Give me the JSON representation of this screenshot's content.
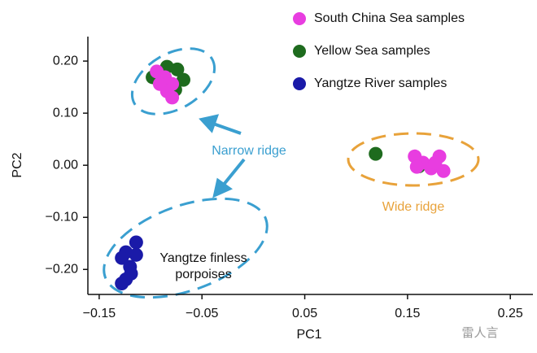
{
  "chart_data": {
    "type": "scatter",
    "xlabel": "PC1",
    "ylabel": "PC2",
    "xlim": [
      -0.161,
      0.272
    ],
    "ylim": [
      -0.248,
      0.247
    ],
    "xticks": [
      {
        "value": -0.15,
        "label": "−0.15"
      },
      {
        "value": -0.05,
        "label": "−0.05"
      },
      0.05,
      0.15,
      0.25
    ],
    "yticks": [
      {
        "value": -0.2,
        "label": "−0.20"
      },
      {
        "value": -0.1,
        "label": "−0.10"
      },
      {
        "value": 0,
        "label": "0.00"
      },
      {
        "value": 0.1,
        "label": "0.10"
      },
      {
        "value": 0.2,
        "label": "0.20"
      }
    ],
    "legend": "upper right",
    "series": [
      {
        "name": "South China Sea samples",
        "color": "#e83de0",
        "x": [
          -0.094,
          -0.086,
          -0.079,
          -0.091,
          -0.084,
          -0.079,
          0.157,
          0.165,
          0.173,
          0.181,
          0.185,
          0.177,
          0.159
        ],
        "values": [
          0.18,
          0.169,
          0.156,
          0.156,
          0.142,
          0.13,
          0.017,
          0.005,
          -0.006,
          0.017,
          -0.011,
          0.005,
          -0.003
        ]
      },
      {
        "name": "Yellow Sea samples",
        "color": "#1e6b1e",
        "x": [
          -0.084,
          -0.074,
          -0.068,
          -0.098,
          -0.076,
          0.119,
          0.161
        ],
        "values": [
          0.189,
          0.184,
          0.164,
          0.169,
          0.145,
          0.022,
          -0.002
        ]
      },
      {
        "name": "Yangtze River samples",
        "color": "#1a1aa8",
        "x": [
          -0.114,
          -0.124,
          -0.114,
          -0.12,
          -0.128,
          -0.124,
          -0.128,
          -0.119
        ],
        "values": [
          -0.148,
          -0.167,
          -0.172,
          -0.195,
          -0.178,
          -0.219,
          -0.227,
          -0.208
        ]
      }
    ],
    "annotations": {
      "narrow": "Narrow ridge",
      "wide": "Wide ridge",
      "porpoise_1": "Yangtze finless",
      "porpoise_2": "porpoises",
      "watermark": "雷人言"
    }
  }
}
